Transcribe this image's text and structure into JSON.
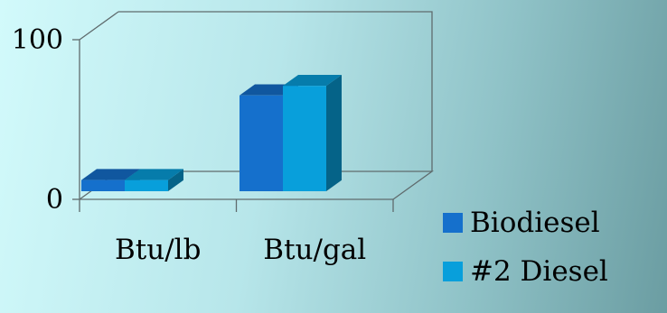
{
  "chart_data": {
    "type": "bar",
    "categories": [
      "Btu/lb",
      "Btu/gal"
    ],
    "series": [
      {
        "name": "Biodiesel",
        "values": [
          7,
          60
        ],
        "color": "#1570cc"
      },
      {
        "name": "#2 Diesel",
        "values": [
          7,
          66
        ],
        "color": "#089fdb"
      }
    ],
    "y_tick_labels": [
      "0",
      "100"
    ],
    "ylim": [
      0,
      100
    ],
    "legend": "bottom-right",
    "grid": false,
    "three_d": true
  }
}
